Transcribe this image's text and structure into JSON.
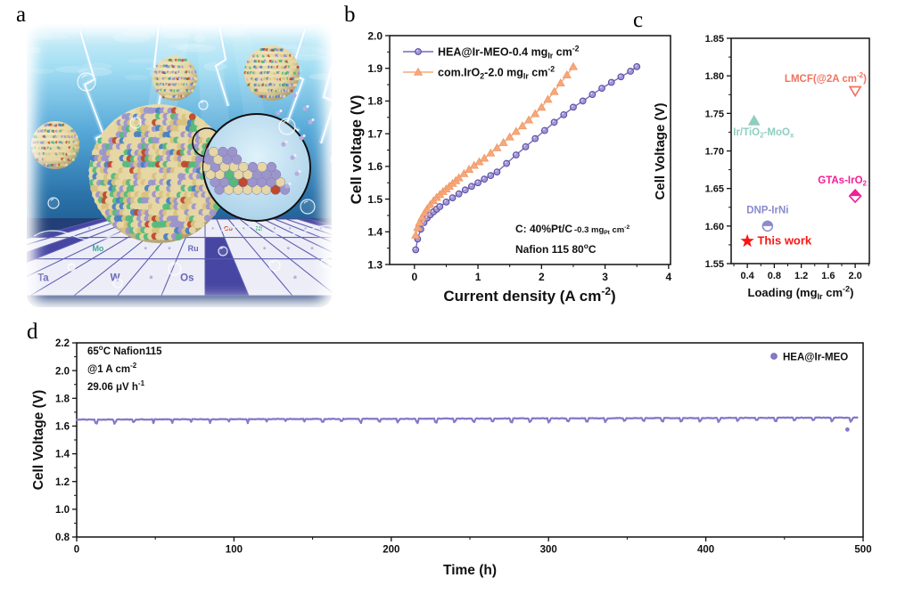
{
  "panel_labels": {
    "a": "a",
    "b": "b",
    "c": "c",
    "d": "d"
  },
  "panel_a": {
    "type": "illustration",
    "caption": "nanoparticle catalyst under water with lightning and periodic-table floor",
    "floor_elements": [
      {
        "symbol": "V",
        "row": 1,
        "col": -6,
        "color": "#6868b8"
      },
      {
        "symbol": "Co",
        "row": 1,
        "col": 1,
        "color": "#d4502a"
      },
      {
        "symbol": "Ni",
        "row": 1,
        "col": 3,
        "color": "#3fae62"
      },
      {
        "symbol": "Mo",
        "row": 2,
        "col": -5,
        "color": "#3fa89a"
      },
      {
        "symbol": "Ru",
        "row": 2,
        "col": -1,
        "color": "#6868b8"
      },
      {
        "symbol": "Ta",
        "row": 3,
        "col": -5,
        "color": "#6868b8"
      },
      {
        "symbol": "W",
        "row": 3,
        "col": -3,
        "color": "#6868b8"
      },
      {
        "symbol": "Os",
        "row": 3,
        "col": -1,
        "color": "#6868b8"
      }
    ],
    "palette": {
      "water_top": "#d8f4fb",
      "water_hi": "#9fdcf2",
      "water_mid": "#56a8d8",
      "water_deep": "#2b74ab",
      "water_low": "#174f83",
      "water_bottom": "#0e3a64",
      "atom_tan": "#e6d7a4",
      "atom_tan2": "#d9c27f",
      "atom_purple": "#9c95cc",
      "atom_green": "#55b97e",
      "atom_blue": "#4a7fc1",
      "atom_red": "#bf4a2e",
      "tile_light": "#ecedf7",
      "tile_dark": "#4747a3",
      "tile_line": "#5c5cb0"
    }
  },
  "chart_data": [
    {
      "id": "b",
      "type": "line",
      "xlabel": "Current density (A cm^{-2})",
      "ylabel": "Cell voltage (V)",
      "xlim": [
        -0.39,
        4.03
      ],
      "ylim": [
        1.3,
        2.0
      ],
      "xticks": [
        0,
        1,
        2,
        3,
        4
      ],
      "xtick_labels": [
        "0",
        "1",
        "2",
        "3",
        "4"
      ],
      "yticks": [
        1.3,
        1.4,
        1.5,
        1.6,
        1.7,
        1.8,
        1.9,
        2.0
      ],
      "ytick_labels": [
        "1.3",
        "1.4",
        "1.5",
        "1.6",
        "1.7",
        "1.8",
        "1.9",
        "2.0"
      ],
      "x_minor_step": 0.5,
      "y_minor_step": 0.05,
      "series": [
        {
          "name": "HEA@Ir-MEO-0.4 mg_{Ir} cm^{-2}",
          "color": "#7468bf",
          "marker": "circle",
          "marker_fill": "#a396d8",
          "marker_edge": "#544a9e",
          "x": [
            0.02,
            0.05,
            0.1,
            0.15,
            0.2,
            0.25,
            0.3,
            0.35,
            0.4,
            0.5,
            0.6,
            0.7,
            0.8,
            0.9,
            1.0,
            1.1,
            1.2,
            1.3,
            1.45,
            1.6,
            1.75,
            1.9,
            2.05,
            2.2,
            2.35,
            2.5,
            2.65,
            2.8,
            2.95,
            3.1,
            3.25,
            3.4,
            3.5
          ],
          "y": [
            1.345,
            1.378,
            1.408,
            1.428,
            1.442,
            1.452,
            1.461,
            1.469,
            1.477,
            1.491,
            1.504,
            1.516,
            1.528,
            1.539,
            1.55,
            1.561,
            1.572,
            1.583,
            1.609,
            1.635,
            1.66,
            1.685,
            1.71,
            1.735,
            1.758,
            1.781,
            1.8,
            1.82,
            1.839,
            1.857,
            1.874,
            1.891,
            1.905
          ]
        },
        {
          "name": "com.IrO_{2}-2.0 mg_{Ir} cm^{-2}",
          "color": "#f6a87c",
          "marker": "triangle",
          "marker_fill": "#f6a87c",
          "marker_edge": "#ef9764",
          "x": [
            0.02,
            0.05,
            0.08,
            0.12,
            0.16,
            0.2,
            0.25,
            0.3,
            0.35,
            0.4,
            0.45,
            0.5,
            0.55,
            0.6,
            0.65,
            0.7,
            0.78,
            0.86,
            0.94,
            1.02,
            1.1,
            1.2,
            1.3,
            1.4,
            1.5,
            1.6,
            1.7,
            1.8,
            1.9,
            2.0,
            2.1,
            2.2,
            2.3,
            2.4,
            2.5
          ],
          "y": [
            1.39,
            1.413,
            1.428,
            1.444,
            1.458,
            1.47,
            1.483,
            1.495,
            1.505,
            1.514,
            1.523,
            1.531,
            1.539,
            1.548,
            1.556,
            1.565,
            1.578,
            1.591,
            1.603,
            1.614,
            1.625,
            1.641,
            1.657,
            1.673,
            1.69,
            1.707,
            1.724,
            1.742,
            1.761,
            1.781,
            1.805,
            1.829,
            1.855,
            1.88,
            1.905
          ]
        }
      ],
      "annotation": {
        "line1_main": "C: 40%Pt/C",
        "line1_small": "-0.3 mg_{Pt} cm^{-2}",
        "line2": "Nafion 115 80^{o}C"
      }
    },
    {
      "id": "c",
      "type": "scatter",
      "xlabel": "Loading (mg_{Ir} cm^{-2})",
      "ylabel": "Cell Voltage (V)",
      "xlim": [
        0.16,
        2.21
      ],
      "ylim": [
        1.55,
        1.85
      ],
      "xticks": [
        0.4,
        0.8,
        1.2,
        1.6,
        2.0
      ],
      "xtick_labels": [
        "0.4",
        "0.8",
        "1.2",
        "1.6",
        "2.0"
      ],
      "yticks": [
        1.55,
        1.6,
        1.65,
        1.7,
        1.75,
        1.8,
        1.85
      ],
      "ytick_labels": [
        "1.55",
        "1.60",
        "1.65",
        "1.70",
        "1.75",
        "1.80",
        "1.85"
      ],
      "x_minor_step": 0.2,
      "y_minor_step": 0.025,
      "points": [
        {
          "label": "LMCF(@2A cm^{-2})",
          "x": 2.0,
          "y": 1.78,
          "marker": "triangle-down-open",
          "color": "#F2725E",
          "label_anchor": "end",
          "label_x": 2.17,
          "label_y": 1.792,
          "label_size": 11.5
        },
        {
          "label": "Ir/TiO_{2}-MoO_{x}",
          "x": 0.5,
          "y": 1.74,
          "marker": "triangle-up",
          "color": "#8FCDC0",
          "label_anchor": "start",
          "label_x": 0.19,
          "label_y": 1.721,
          "label_size": 11.5
        },
        {
          "label": "GTAs-IrO_{2}",
          "x": 2.0,
          "y": 1.64,
          "marker": "diamond-half",
          "color": "#F01F97",
          "error_bar": 0.004,
          "label_anchor": "end",
          "label_x": 2.17,
          "label_y": 1.657,
          "label_size": 11.5
        },
        {
          "label": "DNP-IrNi",
          "x": 0.7,
          "y": 1.6,
          "marker": "circle-half",
          "color": "#8A8ACE",
          "error_bar": 0.004,
          "label_anchor": "middle",
          "label_x": 0.7,
          "label_y": 1.617,
          "label_size": 11.5
        },
        {
          "label": "This work",
          "x": 0.4,
          "y": 1.58,
          "marker": "star",
          "color": "#FA1414",
          "label_anchor": "start",
          "label_x": 0.55,
          "label_y": 1.5755,
          "label_size": 13
        }
      ]
    },
    {
      "id": "d",
      "type": "line",
      "xlabel": "Time (h)",
      "ylabel": "Cell Voltage (V)",
      "xlim": [
        0,
        500
      ],
      "ylim": [
        0.8,
        2.2
      ],
      "xticks": [
        0,
        100,
        200,
        300,
        400,
        500
      ],
      "xtick_labels": [
        "0",
        "100",
        "200",
        "300",
        "400",
        "500"
      ],
      "yticks": [
        0.8,
        1.0,
        1.2,
        1.4,
        1.6,
        1.8,
        2.0,
        2.2
      ],
      "ytick_labels": [
        "0.8",
        "1.0",
        "1.2",
        "1.4",
        "1.6",
        "1.8",
        "2.0",
        "2.2"
      ],
      "x_minor_step": 50,
      "y_minor_step": 0.1,
      "series": [
        {
          "name": "HEA@Ir-MEO",
          "color": "#837ac9",
          "trace": {
            "hours": 497,
            "v_start": 1.6465,
            "v_end": 1.661,
            "noise": 0.004,
            "dip_interval_h": 12,
            "dip_depth": 0.024,
            "dip_width_h": 1.5
          },
          "outlier": {
            "x": 490,
            "y": 1.575
          }
        }
      ],
      "degradation_rate": "29.06 μV h^{-1}",
      "annotations": [
        "65^{o}C Nafion115",
        "@1 A cm^{-2}",
        "29.06 μV h^{-1}"
      ],
      "legend": {
        "label": "HEA@Ir-MEO",
        "color": "#837ac9"
      }
    }
  ]
}
